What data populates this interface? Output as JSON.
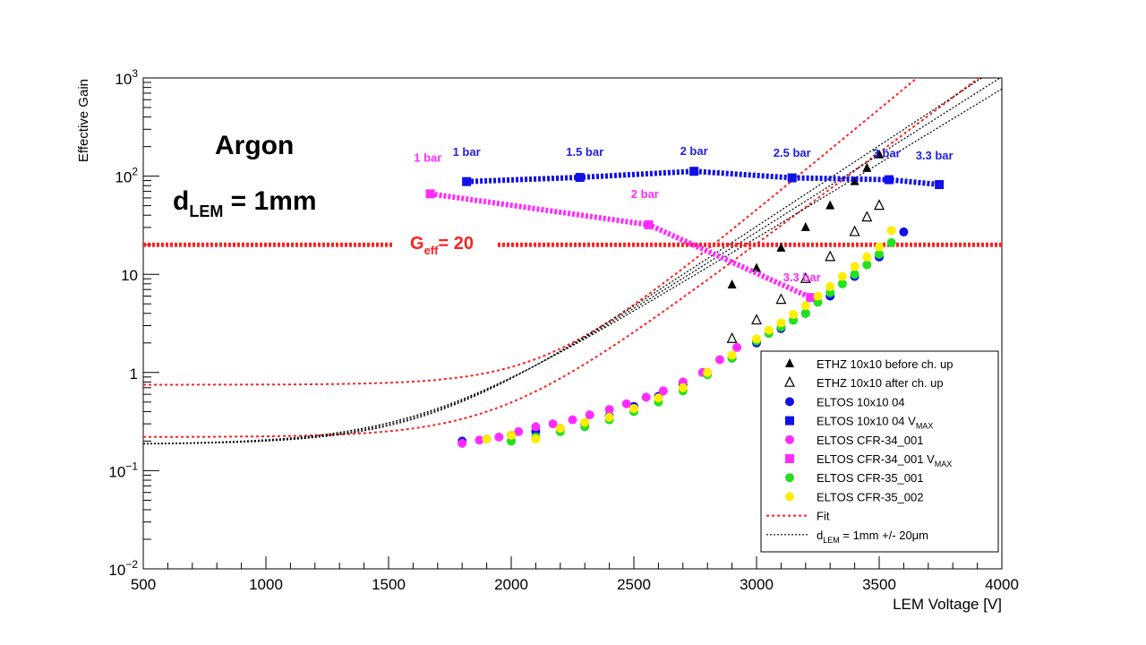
{
  "chart_data": {
    "type": "scatter",
    "ylabel": "Effective Gain",
    "xlabel": "LEM Voltage [V]",
    "x_scale": "linear",
    "y_scale": "log",
    "xlim": [
      500,
      4000
    ],
    "ylim": [
      0.01,
      1000
    ],
    "x_ticks": [
      "500",
      "1000",
      "1500",
      "2000",
      "2500",
      "3000",
      "3500",
      "4000"
    ],
    "y_ticks": [
      {
        "value": 0.01,
        "base": "10",
        "exp": "−2"
      },
      {
        "value": 0.1,
        "base": "10",
        "exp": "−1"
      },
      {
        "value": 1,
        "base": "1",
        "exp": ""
      },
      {
        "value": 10,
        "base": "10",
        "exp": ""
      },
      {
        "value": 100,
        "base": "10",
        "exp": "2"
      },
      {
        "value": 1000,
        "base": "10",
        "exp": "3"
      }
    ],
    "annotations": {
      "gas": "Argon",
      "dlem_main": "d",
      "dlem_sub": "LEM",
      "dlem_rest": " = 1mm",
      "geff_main": "G",
      "geff_sub": "eff",
      "geff_rest": "= 20"
    },
    "geff_line": {
      "y": 20,
      "color": "#ff2020"
    },
    "pressure_labels": [
      {
        "text": "1 bar",
        "x": 1818,
        "y": 160,
        "color": "#2020e0"
      },
      {
        "text": "1.5 bar",
        "x": 2300,
        "y": 160,
        "color": "#2020e0"
      },
      {
        "text": "2 bar",
        "x": 2745,
        "y": 165,
        "color": "#2020e0"
      },
      {
        "text": "2.5 bar",
        "x": 3145,
        "y": 158,
        "color": "#2020e0"
      },
      {
        "text": "3 bar",
        "x": 3530,
        "y": 155,
        "color": "#2020e0"
      },
      {
        "text": "3.3 bar",
        "x": 3725,
        "y": 148,
        "color": "#2020e0"
      },
      {
        "text": "1 bar",
        "x": 1660,
        "y": 140,
        "color": "#ff2cff"
      },
      {
        "text": "2 bar",
        "x": 2545,
        "y": 60,
        "color": "#ff2cff"
      },
      {
        "text": "3.3 bar",
        "x": 3185,
        "y": 8.5,
        "color": "#ff2cff"
      }
    ],
    "series": [
      {
        "name": "ETHZ 10x10 before ch. up",
        "marker": "triangle-filled",
        "color": "#000000",
        "x": [
          2900,
          3000,
          3100,
          3200,
          3300,
          3400,
          3450,
          3500
        ],
        "y": [
          7.8,
          11.5,
          18.5,
          30,
          50,
          88,
          120,
          165
        ]
      },
      {
        "name": "ETHZ 10x10 after ch. up",
        "marker": "triangle-open",
        "color": "#000000",
        "x": [
          2900,
          3000,
          3100,
          3200,
          3300,
          3400,
          3450,
          3500
        ],
        "y": [
          2.2,
          3.4,
          5.5,
          9,
          15,
          27,
          38,
          50
        ]
      },
      {
        "name": "ELTOS 10x10 04",
        "marker": "circle",
        "color": "#1010e8",
        "x": [
          1800,
          1900,
          2000,
          2100,
          2200,
          2300,
          2400,
          2500,
          2600,
          2700,
          2800,
          2900,
          3000,
          3100,
          3200,
          3300,
          3400,
          3500,
          3600
        ],
        "y": [
          0.2,
          0.21,
          0.23,
          0.25,
          0.27,
          0.3,
          0.36,
          0.45,
          0.57,
          0.75,
          1.0,
          1.4,
          2.0,
          2.8,
          4.0,
          6.0,
          9.5,
          15,
          27
        ]
      },
      {
        "name": "ELTOS 10x10 04 V_MAX",
        "marker": "square",
        "color": "#1010e8",
        "connected": true,
        "x": [
          1818,
          2280,
          2745,
          3145,
          3540,
          3745
        ],
        "y": [
          88,
          97,
          112,
          96,
          92,
          82
        ]
      },
      {
        "name": "ELTOS CFR-34_001",
        "marker": "circle",
        "color": "#ff2cff",
        "x": [
          1800,
          1870,
          1950,
          2030,
          2100,
          2170,
          2250,
          2320,
          2400,
          2470,
          2550,
          2620,
          2700,
          2780,
          2850,
          2920
        ],
        "y": [
          0.19,
          0.205,
          0.22,
          0.25,
          0.28,
          0.3,
          0.33,
          0.37,
          0.42,
          0.48,
          0.56,
          0.65,
          0.8,
          1.0,
          1.35,
          1.8
        ]
      },
      {
        "name": "ELTOS CFR-34_001 V_MAX",
        "marker": "square",
        "color": "#ff2cff",
        "connected": true,
        "x": [
          1670,
          2560,
          3220
        ],
        "y": [
          66,
          32,
          5.8
        ]
      },
      {
        "name": "ELTOS CFR-35_001",
        "marker": "circle",
        "color": "#22e022",
        "x": [
          2000,
          2100,
          2200,
          2300,
          2400,
          2500,
          2600,
          2700,
          2800,
          2900,
          3000,
          3050,
          3100,
          3150,
          3200,
          3250,
          3300,
          3350,
          3400,
          3450,
          3500,
          3550
        ],
        "y": [
          0.2,
          0.22,
          0.25,
          0.28,
          0.33,
          0.4,
          0.5,
          0.65,
          0.95,
          1.4,
          2.1,
          2.5,
          2.9,
          3.4,
          4.0,
          5.2,
          6.5,
          8.0,
          10,
          12.5,
          16,
          21
        ]
      },
      {
        "name": "ELTOS CFR-35_002",
        "marker": "circle",
        "color": "#ffee00",
        "x": [
          1900,
          2000,
          2100,
          2200,
          2300,
          2400,
          2500,
          2600,
          2700,
          2800,
          2900,
          3000,
          3050,
          3100,
          3150,
          3200,
          3250,
          3300,
          3350,
          3400,
          3450,
          3500,
          3550
        ],
        "y": [
          0.21,
          0.23,
          0.21,
          0.27,
          0.31,
          0.35,
          0.43,
          0.55,
          0.7,
          1.0,
          1.5,
          2.2,
          2.7,
          3.2,
          3.9,
          4.8,
          6.0,
          7.5,
          9.5,
          12,
          15,
          19,
          28
        ]
      },
      {
        "name": "Fit",
        "marker": "line-dotted",
        "color": "#ff2020",
        "curves": [
          {
            "a": 0.75,
            "b": 0.00475,
            "x0": 2200
          },
          {
            "a": 0.22,
            "b": 0.0043,
            "x0": 2300
          }
        ]
      },
      {
        "name": "d_LEM = 1mm +/- 20μm",
        "marker": "line-dotted",
        "color": "#000000",
        "curves": [
          {
            "a": 0.185,
            "b": 0.0038,
            "x0": 2100
          },
          {
            "a": 0.185,
            "b": 0.00365,
            "x0": 2100
          },
          {
            "a": 0.185,
            "b": 0.0035,
            "x0": 2100
          }
        ]
      }
    ],
    "legend": {
      "position": "bottom-right",
      "entries": [
        {
          "marker": "triangle-filled",
          "color": "#000000",
          "label": "ETHZ 10x10 before ch. up",
          "sub": ""
        },
        {
          "marker": "triangle-open",
          "color": "#000000",
          "label": "ETHZ 10x10 after ch. up",
          "sub": ""
        },
        {
          "marker": "circle",
          "color": "#1010e8",
          "label": "ELTOS 10x10 04",
          "sub": ""
        },
        {
          "marker": "square",
          "color": "#1010e8",
          "label": "ELTOS 10x10 04 V",
          "sub": "MAX"
        },
        {
          "marker": "circle",
          "color": "#ff2cff",
          "label": "ELTOS CFR-34_001",
          "sub": ""
        },
        {
          "marker": "square",
          "color": "#ff2cff",
          "label": "ELTOS CFR-34_001 V",
          "sub": "MAX"
        },
        {
          "marker": "circle",
          "color": "#22e022",
          "label": "ELTOS CFR-35_001",
          "sub": ""
        },
        {
          "marker": "circle",
          "color": "#ffee00",
          "label": "ELTOS CFR-35_002",
          "sub": ""
        },
        {
          "marker": "line-red",
          "color": "#ff2020",
          "label": "Fit",
          "sub": ""
        },
        {
          "marker": "line-black",
          "color": "#000000",
          "label": "d",
          "sub": "LEM",
          "rest": " = 1mm +/- 20μm"
        }
      ]
    }
  }
}
